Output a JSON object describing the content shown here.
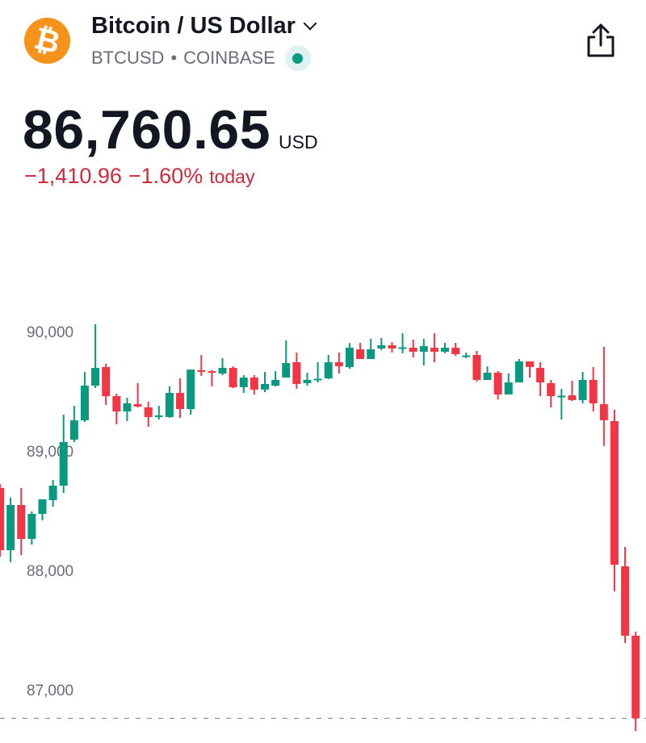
{
  "header": {
    "logo_icon": "bitcoin-logo",
    "logo_text": "₿",
    "title": "Bitcoin / US Dollar",
    "symbol": "BTCUSD",
    "separator": "•",
    "exchange": "COINBASE",
    "market_status": "open",
    "share_icon": "share-icon"
  },
  "quote": {
    "price": "86,760.65",
    "currency": "USD",
    "change": "−1,410.96",
    "change_percent": "−1.60%",
    "period": "today"
  },
  "colors": {
    "up": "#089981",
    "down": "#F23645",
    "logo": "#F7931A",
    "change_text": "#CF2A3C"
  },
  "chart_data": {
    "type": "candlestick",
    "y_tick_labels": [
      "90,000",
      "89,000",
      "88,000",
      "87,000"
    ],
    "y_ticks": [
      90000,
      89000,
      88000,
      87000
    ],
    "ylim": [
      86620,
      90200
    ],
    "last_price": 86760.65,
    "grid": false,
    "candles": [
      [
        88689,
        88723,
        88115,
        88169
      ],
      [
        88169,
        88608,
        88068,
        88547
      ],
      [
        88547,
        88689,
        88128,
        88263
      ],
      [
        88263,
        88493,
        88216,
        88473
      ],
      [
        88473,
        88595,
        88419,
        88595
      ],
      [
        88588,
        88757,
        88534,
        88709
      ],
      [
        88709,
        89304,
        88649,
        89074
      ],
      [
        89095,
        89378,
        89074,
        89257
      ],
      [
        89257,
        89662,
        89243,
        89547
      ],
      [
        89547,
        90061,
        89527,
        89696
      ],
      [
        89703,
        89730,
        89385,
        89459
      ],
      [
        89459,
        89480,
        89223,
        89331
      ],
      [
        89331,
        89446,
        89250,
        89399
      ],
      [
        89392,
        89568,
        89365,
        89372
      ],
      [
        89365,
        89412,
        89203,
        89284
      ],
      [
        89291,
        89378,
        89263,
        89298
      ],
      [
        89284,
        89541,
        89277,
        89486
      ],
      [
        89486,
        89608,
        89277,
        89351
      ],
      [
        89351,
        89682,
        89304,
        89682
      ],
      [
        89676,
        89804,
        89628,
        89669
      ],
      [
        89669,
        89676,
        89541,
        89662
      ],
      [
        89649,
        89777,
        89635,
        89696
      ],
      [
        89696,
        89709,
        89527,
        89534
      ],
      [
        89534,
        89635,
        89486,
        89615
      ],
      [
        89615,
        89635,
        89473,
        89514
      ],
      [
        89514,
        89662,
        89493,
        89561
      ],
      [
        89547,
        89669,
        89541,
        89595
      ],
      [
        89615,
        89926,
        89615,
        89736
      ],
      [
        89743,
        89824,
        89520,
        89561
      ],
      [
        89568,
        89655,
        89547,
        89595
      ],
      [
        89598,
        89743,
        89574,
        89605
      ],
      [
        89608,
        89804,
        89601,
        89743
      ],
      [
        89743,
        89824,
        89649,
        89709
      ],
      [
        89703,
        89905,
        89689,
        89865
      ],
      [
        89851,
        89905,
        89784,
        89770
      ],
      [
        89770,
        89939,
        89770,
        89851
      ],
      [
        89858,
        89946,
        89845,
        89885
      ],
      [
        89885,
        89912,
        89824,
        89858
      ],
      [
        89863,
        89986,
        89818,
        89868
      ],
      [
        89865,
        89932,
        89784,
        89831
      ],
      [
        89831,
        89939,
        89716,
        89878
      ],
      [
        89865,
        89986,
        89743,
        89831
      ],
      [
        89831,
        89905,
        89818,
        89865
      ],
      [
        89865,
        89905,
        89797,
        89811
      ],
      [
        89795,
        89824,
        89777,
        89800
      ],
      [
        89804,
        89838,
        89581,
        89595
      ],
      [
        89595,
        89709,
        89595,
        89655
      ],
      [
        89655,
        89669,
        89432,
        89473
      ],
      [
        89473,
        89649,
        89473,
        89574
      ],
      [
        89574,
        89770,
        89574,
        89750
      ],
      [
        89750,
        89750,
        89615,
        89703
      ],
      [
        89696,
        89743,
        89459,
        89574
      ],
      [
        89568,
        89595,
        89365,
        89459
      ],
      [
        89459,
        89520,
        89263,
        89463
      ],
      [
        89466,
        89588,
        89419,
        89426
      ],
      [
        89426,
        89662,
        89399,
        89595
      ],
      [
        89595,
        89703,
        89331,
        89399
      ],
      [
        89392,
        89872,
        89041,
        89257
      ],
      [
        89250,
        89345,
        87824,
        88047
      ],
      [
        88034,
        88196,
        87392,
        87453
      ],
      [
        87453,
        87486,
        86655,
        86761
      ]
    ]
  }
}
